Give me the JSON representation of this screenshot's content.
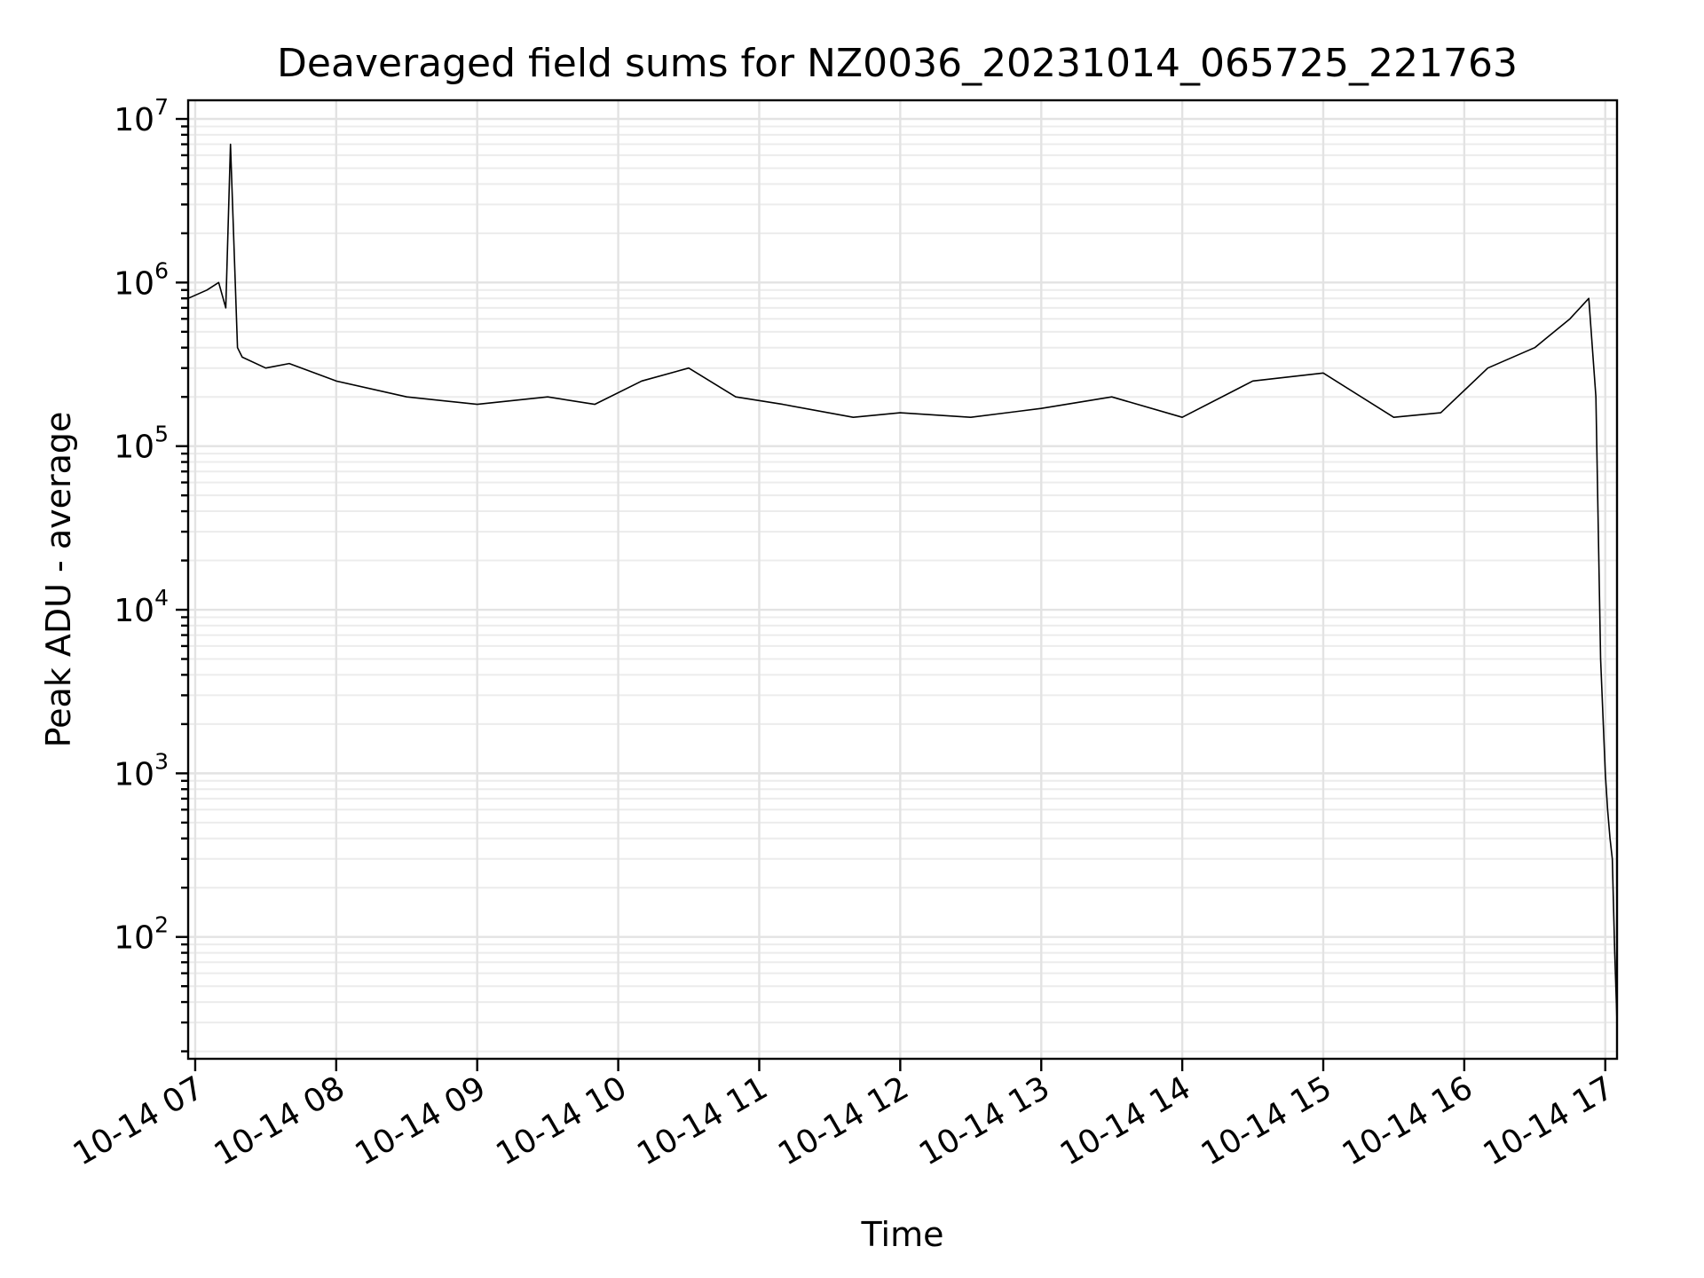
{
  "chart_data": {
    "type": "line",
    "title": "Deaveraged field sums for NZ0036_20231014_065725_221763",
    "xlabel": "Time",
    "ylabel": "Peak ADU - average",
    "yscale": "log",
    "xlim": [
      "2023-10-14 06:57",
      "2023-10-14 17:05"
    ],
    "ylim": [
      18,
      13000000
    ],
    "grid": true,
    "x_ticks": [
      {
        "value": "2023-10-14 07:00",
        "label": "10-14 07"
      },
      {
        "value": "2023-10-14 08:00",
        "label": "10-14 08"
      },
      {
        "value": "2023-10-14 09:00",
        "label": "10-14 09"
      },
      {
        "value": "2023-10-14 10:00",
        "label": "10-14 10"
      },
      {
        "value": "2023-10-14 11:00",
        "label": "10-14 11"
      },
      {
        "value": "2023-10-14 12:00",
        "label": "10-14 12"
      },
      {
        "value": "2023-10-14 13:00",
        "label": "10-14 13"
      },
      {
        "value": "2023-10-14 14:00",
        "label": "10-14 14"
      },
      {
        "value": "2023-10-14 15:00",
        "label": "10-14 15"
      },
      {
        "value": "2023-10-14 16:00",
        "label": "10-14 16"
      },
      {
        "value": "2023-10-14 17:00",
        "label": "10-14 17"
      }
    ],
    "y_ticks": [
      {
        "value": 100,
        "base": "10",
        "exp": "2"
      },
      {
        "value": 1000,
        "base": "10",
        "exp": "3"
      },
      {
        "value": 10000,
        "base": "10",
        "exp": "4"
      },
      {
        "value": 100000,
        "base": "10",
        "exp": "5"
      },
      {
        "value": 1000000,
        "base": "10",
        "exp": "6"
      },
      {
        "value": 10000000,
        "base": "10",
        "exp": "7"
      }
    ],
    "series": [
      {
        "color": "#000000",
        "x": [
          "2023-10-14 06:57",
          "2023-10-14 07:05",
          "2023-10-14 07:10",
          "2023-10-14 07:13",
          "2023-10-14 07:15",
          "2023-10-14 07:18",
          "2023-10-14 07:20",
          "2023-10-14 07:30",
          "2023-10-14 07:40",
          "2023-10-14 08:00",
          "2023-10-14 08:30",
          "2023-10-14 09:00",
          "2023-10-14 09:30",
          "2023-10-14 09:50",
          "2023-10-14 10:10",
          "2023-10-14 10:30",
          "2023-10-14 10:50",
          "2023-10-14 11:10",
          "2023-10-14 11:40",
          "2023-10-14 12:00",
          "2023-10-14 12:30",
          "2023-10-14 13:00",
          "2023-10-14 13:30",
          "2023-10-14 14:00",
          "2023-10-14 14:30",
          "2023-10-14 15:00",
          "2023-10-14 15:30",
          "2023-10-14 15:50",
          "2023-10-14 16:10",
          "2023-10-14 16:30",
          "2023-10-14 16:45",
          "2023-10-14 16:53",
          "2023-10-14 16:56",
          "2023-10-14 16:58",
          "2023-10-14 17:00",
          "2023-10-14 17:01",
          "2023-10-14 17:02",
          "2023-10-14 17:03",
          "2023-10-14 17:04",
          "2023-10-14 17:05"
        ],
        "y": [
          800000,
          900000,
          1000000,
          700000,
          7000000,
          400000,
          350000,
          300000,
          320000,
          250000,
          200000,
          180000,
          200000,
          180000,
          250000,
          300000,
          200000,
          180000,
          150000,
          160000,
          150000,
          170000,
          200000,
          150000,
          250000,
          280000,
          150000,
          160000,
          300000,
          400000,
          600000,
          800000,
          200000,
          5000,
          1000,
          600,
          400,
          300,
          80,
          30
        ]
      }
    ]
  }
}
